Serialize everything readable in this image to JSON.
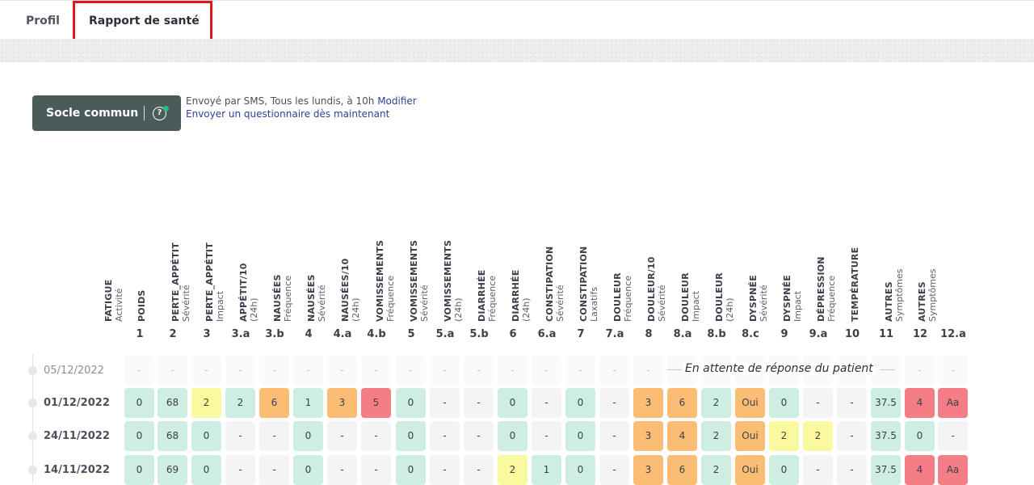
{
  "tabs": [
    {
      "label": "Profil"
    },
    {
      "label": "Rapport de santé"
    }
  ],
  "questionnaire": {
    "button_label": "Socle commun",
    "help_glyph": "?",
    "schedule_text": "Envoyé par SMS, Tous les lundis, à 10h",
    "modify_link": "Modifier",
    "send_now_link": "Envoyer un questionnaire dès maintenant"
  },
  "columns": [
    {
      "title": "FATIGUE",
      "sub": "Activité",
      "num": "1"
    },
    {
      "title": "POIDS",
      "sub": "",
      "num": "2"
    },
    {
      "title": "PERTE_APPÉTIT",
      "sub": "Sévérité",
      "num": "3"
    },
    {
      "title": "PERTE_APPÉTIT",
      "sub": "Impact",
      "num": "3.a"
    },
    {
      "title": "APPÉTIT/10",
      "sub": "(24h)",
      "num": "3.b"
    },
    {
      "title": "NAUSÉES",
      "sub": "Fréquence",
      "num": "4"
    },
    {
      "title": "NAUSÉES",
      "sub": "Sévérité",
      "num": "4.a"
    },
    {
      "title": "NAUSÉES/10",
      "sub": "(24h)",
      "num": "4.b"
    },
    {
      "title": "VOMISSEMENTS",
      "sub": "Fréquence",
      "num": "5"
    },
    {
      "title": "VOMISSEMENTS",
      "sub": "Sévérité",
      "num": "5.a"
    },
    {
      "title": "VOMISSEMENTS",
      "sub": "(24h)",
      "num": "5.b"
    },
    {
      "title": "DIARRHÉE",
      "sub": "Fréquence",
      "num": "6"
    },
    {
      "title": "DIARRHÉE",
      "sub": "(24h)",
      "num": "6.a"
    },
    {
      "title": "CONSTIPATION",
      "sub": "Sévérité",
      "num": "7"
    },
    {
      "title": "CONSTIPATION",
      "sub": "Laxatifs",
      "num": "7.a"
    },
    {
      "title": "DOULEUR",
      "sub": "Fréquence",
      "num": "8"
    },
    {
      "title": "DOULEUR/10",
      "sub": "Sévérité",
      "num": "8.a"
    },
    {
      "title": "DOULEUR",
      "sub": "Impact",
      "num": "8.b"
    },
    {
      "title": "DOULEUR",
      "sub": "(24h)",
      "num": "8.c"
    },
    {
      "title": "DYSPNÉE",
      "sub": "Sévérité",
      "num": "9"
    },
    {
      "title": "DYSPNÉE",
      "sub": "Impact",
      "num": "9.a"
    },
    {
      "title": "DÉPRESSION",
      "sub": "Fréquence",
      "num": "10"
    },
    {
      "title": "TEMPÉRATURE",
      "sub": "",
      "num": "11"
    },
    {
      "title": "AUTRES",
      "sub": "Symptômes",
      "num": "12"
    },
    {
      "title": "AUTRES",
      "sub": "Symptômes",
      "num": "12.a"
    }
  ],
  "rows": [
    {
      "date": "05/12/2022",
      "pending": true,
      "pending_message": "En attente de réponse du patient",
      "cells": [
        {
          "v": "-",
          "c": "empty"
        },
        {
          "v": "-",
          "c": "empty"
        },
        {
          "v": "-",
          "c": "empty"
        },
        {
          "v": "-",
          "c": "empty"
        },
        {
          "v": "-",
          "c": "empty"
        },
        {
          "v": "-",
          "c": "empty"
        },
        {
          "v": "-",
          "c": "empty"
        },
        {
          "v": "-",
          "c": "empty"
        },
        {
          "v": "-",
          "c": "empty"
        },
        {
          "v": "-",
          "c": "empty"
        },
        {
          "v": "-",
          "c": "empty"
        },
        {
          "v": "-",
          "c": "empty"
        },
        {
          "v": "-",
          "c": "empty"
        },
        {
          "v": "-",
          "c": "empty"
        },
        {
          "v": "-",
          "c": "empty"
        },
        {
          "v": "-",
          "c": "empty"
        },
        {
          "v": "",
          "c": "empty"
        },
        {
          "v": "",
          "c": "empty"
        },
        {
          "v": "",
          "c": "empty"
        },
        {
          "v": "",
          "c": "empty"
        },
        {
          "v": "",
          "c": "empty"
        },
        {
          "v": "",
          "c": "empty"
        },
        {
          "v": "",
          "c": "empty"
        },
        {
          "v": "-",
          "c": "empty"
        },
        {
          "v": "-",
          "c": "empty"
        }
      ]
    },
    {
      "date": "01/12/2022",
      "pending": false,
      "cells": [
        {
          "v": "0",
          "c": "green"
        },
        {
          "v": "68",
          "c": "green"
        },
        {
          "v": "2",
          "c": "yellow"
        },
        {
          "v": "2",
          "c": "green"
        },
        {
          "v": "6",
          "c": "orange"
        },
        {
          "v": "1",
          "c": "green"
        },
        {
          "v": "3",
          "c": "orange"
        },
        {
          "v": "5",
          "c": "red"
        },
        {
          "v": "0",
          "c": "green"
        },
        {
          "v": "-",
          "c": "grey"
        },
        {
          "v": "-",
          "c": "grey"
        },
        {
          "v": "0",
          "c": "green"
        },
        {
          "v": "-",
          "c": "grey"
        },
        {
          "v": "0",
          "c": "green"
        },
        {
          "v": "-",
          "c": "grey"
        },
        {
          "v": "3",
          "c": "orange"
        },
        {
          "v": "6",
          "c": "orange"
        },
        {
          "v": "2",
          "c": "green"
        },
        {
          "v": "Oui",
          "c": "orange"
        },
        {
          "v": "0",
          "c": "green"
        },
        {
          "v": "-",
          "c": "grey"
        },
        {
          "v": "-",
          "c": "grey"
        },
        {
          "v": "37.5",
          "c": "green"
        },
        {
          "v": "4",
          "c": "red"
        },
        {
          "v": "Aa",
          "c": "red"
        }
      ]
    },
    {
      "date": "24/11/2022",
      "pending": false,
      "cells": [
        {
          "v": "0",
          "c": "green"
        },
        {
          "v": "68",
          "c": "green"
        },
        {
          "v": "0",
          "c": "green"
        },
        {
          "v": "-",
          "c": "grey"
        },
        {
          "v": "-",
          "c": "grey"
        },
        {
          "v": "0",
          "c": "green"
        },
        {
          "v": "-",
          "c": "grey"
        },
        {
          "v": "-",
          "c": "grey"
        },
        {
          "v": "0",
          "c": "green"
        },
        {
          "v": "-",
          "c": "grey"
        },
        {
          "v": "-",
          "c": "grey"
        },
        {
          "v": "0",
          "c": "green"
        },
        {
          "v": "-",
          "c": "grey"
        },
        {
          "v": "0",
          "c": "green"
        },
        {
          "v": "-",
          "c": "grey"
        },
        {
          "v": "3",
          "c": "orange"
        },
        {
          "v": "4",
          "c": "orange"
        },
        {
          "v": "2",
          "c": "green"
        },
        {
          "v": "Oui",
          "c": "orange"
        },
        {
          "v": "2",
          "c": "yellow"
        },
        {
          "v": "2",
          "c": "yellow"
        },
        {
          "v": "-",
          "c": "grey"
        },
        {
          "v": "37.5",
          "c": "green"
        },
        {
          "v": "0",
          "c": "green"
        },
        {
          "v": "-",
          "c": "grey"
        }
      ]
    },
    {
      "date": "14/11/2022",
      "pending": false,
      "cells": [
        {
          "v": "0",
          "c": "green"
        },
        {
          "v": "69",
          "c": "green"
        },
        {
          "v": "0",
          "c": "green"
        },
        {
          "v": "-",
          "c": "grey"
        },
        {
          "v": "-",
          "c": "grey"
        },
        {
          "v": "0",
          "c": "green"
        },
        {
          "v": "-",
          "c": "grey"
        },
        {
          "v": "-",
          "c": "grey"
        },
        {
          "v": "0",
          "c": "green"
        },
        {
          "v": "-",
          "c": "grey"
        },
        {
          "v": "-",
          "c": "grey"
        },
        {
          "v": "2",
          "c": "yellow"
        },
        {
          "v": "1",
          "c": "green"
        },
        {
          "v": "0",
          "c": "green"
        },
        {
          "v": "-",
          "c": "grey"
        },
        {
          "v": "3",
          "c": "orange"
        },
        {
          "v": "6",
          "c": "orange"
        },
        {
          "v": "2",
          "c": "green"
        },
        {
          "v": "Oui",
          "c": "orange"
        },
        {
          "v": "0",
          "c": "green"
        },
        {
          "v": "-",
          "c": "grey"
        },
        {
          "v": "-",
          "c": "grey"
        },
        {
          "v": "37.5",
          "c": "green"
        },
        {
          "v": "4",
          "c": "red"
        },
        {
          "v": "Aa",
          "c": "red"
        }
      ]
    }
  ],
  "colors": {
    "green": "#cdeee1",
    "yellow": "#fbf9a0",
    "orange": "#fbbd74",
    "red": "#f47e86",
    "button_bg": "#4b5b5a",
    "link": "#2e3e9a",
    "highlight": "#e0161c"
  }
}
